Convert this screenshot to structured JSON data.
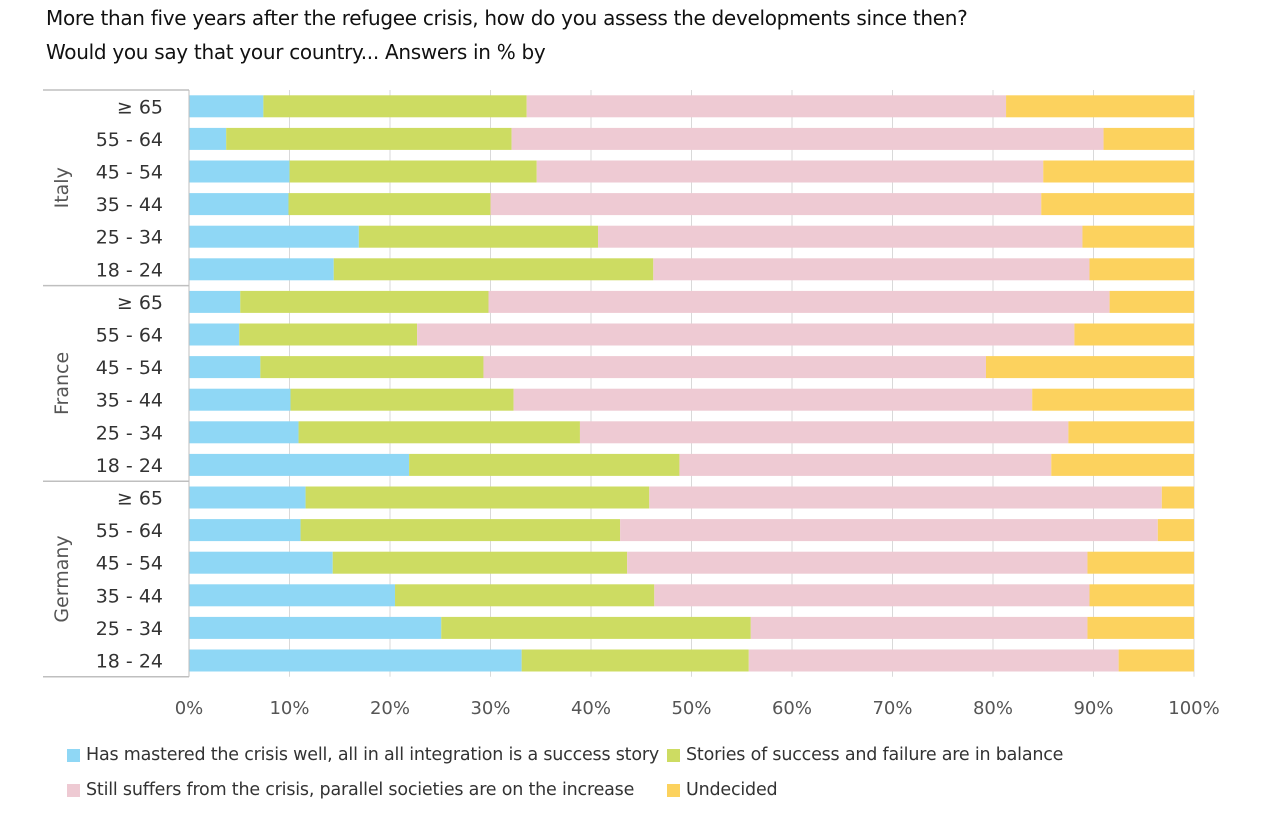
{
  "title_line1": "More than five years after the refugee crisis, how do you assess the developments since then?",
  "title_line2": "Would you say that your country... Answers in % by",
  "chart_data": {
    "type": "bar",
    "orientation": "horizontal",
    "stacked": true,
    "x_range": [
      0,
      100
    ],
    "x_ticks": [
      "0%",
      "10%",
      "20%",
      "30%",
      "40%",
      "50%",
      "60%",
      "70%",
      "80%",
      "90%",
      "100%"
    ],
    "grid": true,
    "legend_placement": "bottom",
    "series": [
      {
        "name": "Has mastered the crisis well, all in all integration is a success story",
        "color": "#8fd7f5"
      },
      {
        "name": "Stories of success and failure are in balance",
        "color": "#cddc62"
      },
      {
        "name": "Still suffers from the crisis, parallel societies are on the increase",
        "color": "#eecad3"
      },
      {
        "name": "Undecided",
        "color": "#fcd25e"
      }
    ],
    "groups": [
      {
        "name": "Italy",
        "rows": [
          {
            "label": "≥ 65",
            "values": [
              7.4,
              26.2,
              47.7,
              18.7
            ]
          },
          {
            "label": "55 - 64",
            "values": [
              3.7,
              28.4,
              58.9,
              9.0
            ]
          },
          {
            "label": "45 - 54",
            "values": [
              10.0,
              24.6,
              50.4,
              15.0
            ]
          },
          {
            "label": "35 - 44",
            "values": [
              9.9,
              20.1,
              54.8,
              15.2
            ]
          },
          {
            "label": "25 - 34",
            "values": [
              16.9,
              23.8,
              48.2,
              11.1
            ]
          },
          {
            "label": "18 - 24",
            "values": [
              14.4,
              31.8,
              43.4,
              10.4
            ]
          }
        ]
      },
      {
        "name": "France",
        "rows": [
          {
            "label": "≥ 65",
            "values": [
              5.1,
              24.7,
              61.8,
              8.4
            ]
          },
          {
            "label": "55 - 64",
            "values": [
              5.0,
              17.7,
              65.4,
              11.9
            ]
          },
          {
            "label": "45 - 54",
            "values": [
              7.1,
              22.2,
              50.0,
              20.7
            ]
          },
          {
            "label": "35 - 44",
            "values": [
              10.1,
              22.2,
              51.6,
              16.1
            ]
          },
          {
            "label": "25 - 34",
            "values": [
              10.9,
              28.0,
              48.6,
              12.5
            ]
          },
          {
            "label": "18 - 24",
            "values": [
              21.9,
              26.9,
              37.0,
              14.2
            ]
          }
        ]
      },
      {
        "name": "Germany",
        "rows": [
          {
            "label": "≥ 65",
            "values": [
              11.6,
              34.2,
              51.0,
              3.2
            ]
          },
          {
            "label": "55 - 64",
            "values": [
              11.1,
              31.8,
              53.5,
              3.6
            ]
          },
          {
            "label": "45 - 54",
            "values": [
              14.3,
              29.3,
              45.8,
              10.6
            ]
          },
          {
            "label": "35 - 44",
            "values": [
              20.5,
              25.8,
              43.3,
              10.4
            ]
          },
          {
            "label": "25 - 34",
            "values": [
              25.1,
              30.8,
              33.5,
              10.6
            ]
          },
          {
            "label": "18 - 24",
            "values": [
              33.1,
              22.6,
              36.8,
              7.5
            ]
          }
        ]
      }
    ]
  }
}
